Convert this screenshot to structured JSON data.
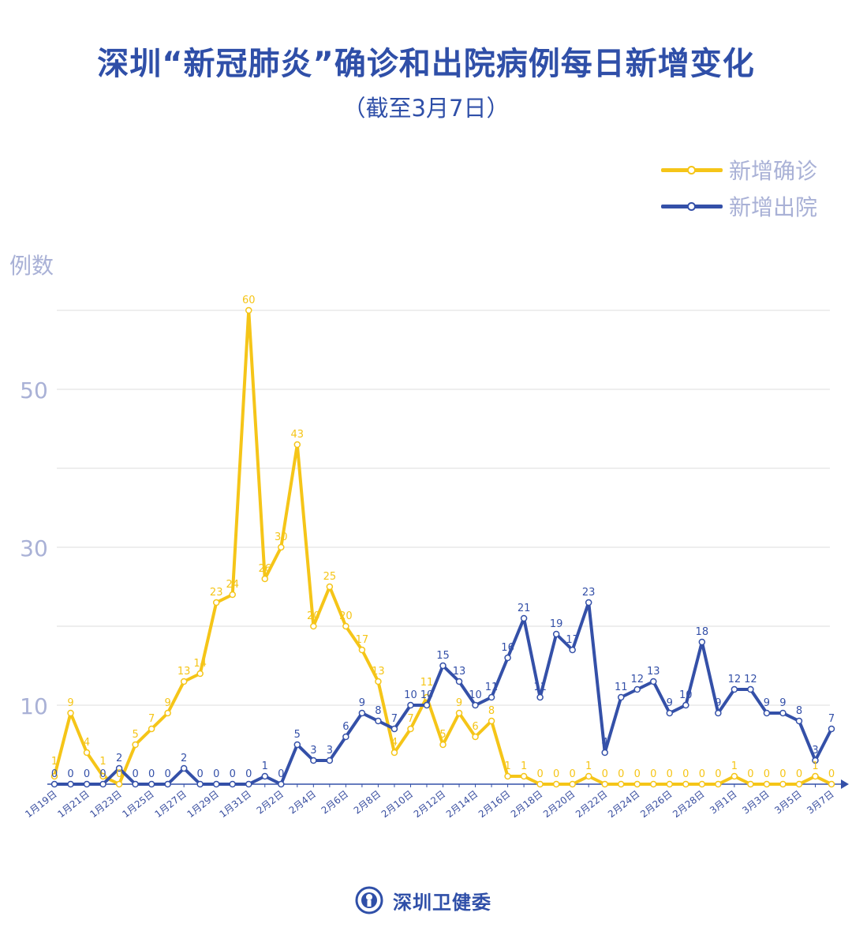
{
  "header": {
    "title": "深圳“新冠肺炎”确诊和出院病例每日新增变化",
    "subtitle": "（截至3月7日）"
  },
  "footer": {
    "org": "深圳卫健委"
  },
  "colors": {
    "confirmed": "#f5c518",
    "discharged": "#3450a8",
    "title": "#2f4fa8",
    "axis_text": "#a9b1d6"
  },
  "chart_data": {
    "type": "line",
    "title": "深圳“新冠肺炎”确诊和出院病例每日新增变化",
    "subtitle": "（截至3月7日）",
    "xlabel": "",
    "ylabel": "例数",
    "ylim": [
      0,
      60
    ],
    "yticks": [
      10,
      30,
      50
    ],
    "grid": true,
    "legend": "top-right",
    "x": [
      "1月19日",
      "1月20日",
      "1月21日",
      "1月22日",
      "1月23日",
      "1月24日",
      "1月25日",
      "1月26日",
      "1月27日",
      "1月28日",
      "1月29日",
      "1月30日",
      "1月31日",
      "2月1日",
      "2月2日",
      "2月3日",
      "2月4日",
      "2月5日",
      "2月6日",
      "2月7日",
      "2月8日",
      "2月9日",
      "2月10日",
      "2月11日",
      "2月12日",
      "2月13日",
      "2月14日",
      "2月15日",
      "2月16日",
      "2月17日",
      "2月18日",
      "2月19日",
      "2月20日",
      "2月21日",
      "2月22日",
      "2月23日",
      "2月24日",
      "2月25日",
      "2月26日",
      "2月27日",
      "2月28日",
      "2月29日",
      "3月1日",
      "3月2日",
      "3月3日",
      "3月4日",
      "3月5日",
      "3月6日",
      "3月7日"
    ],
    "series": [
      {
        "name": "新增确诊",
        "color": "#f5c518",
        "values": [
          1,
          9,
          4,
          1,
          0,
          5,
          7,
          9,
          13,
          14,
          23,
          24,
          60,
          26,
          30,
          43,
          20,
          25,
          20,
          17,
          13,
          4,
          7,
          11,
          5,
          9,
          6,
          8,
          1,
          1,
          0,
          0,
          0,
          1,
          0,
          0,
          0,
          0,
          0,
          0,
          0,
          0,
          1,
          0,
          0,
          0,
          0,
          1,
          0
        ]
      },
      {
        "name": "新增出院",
        "color": "#3450a8",
        "values": [
          0,
          0,
          0,
          0,
          2,
          0,
          0,
          0,
          2,
          0,
          0,
          0,
          0,
          1,
          0,
          5,
          3,
          3,
          6,
          9,
          8,
          7,
          10,
          10,
          15,
          13,
          10,
          11,
          16,
          21,
          11,
          19,
          17,
          23,
          4,
          11,
          12,
          13,
          9,
          10,
          18,
          9,
          12,
          12,
          9,
          9,
          8,
          3,
          7
        ]
      }
    ]
  }
}
